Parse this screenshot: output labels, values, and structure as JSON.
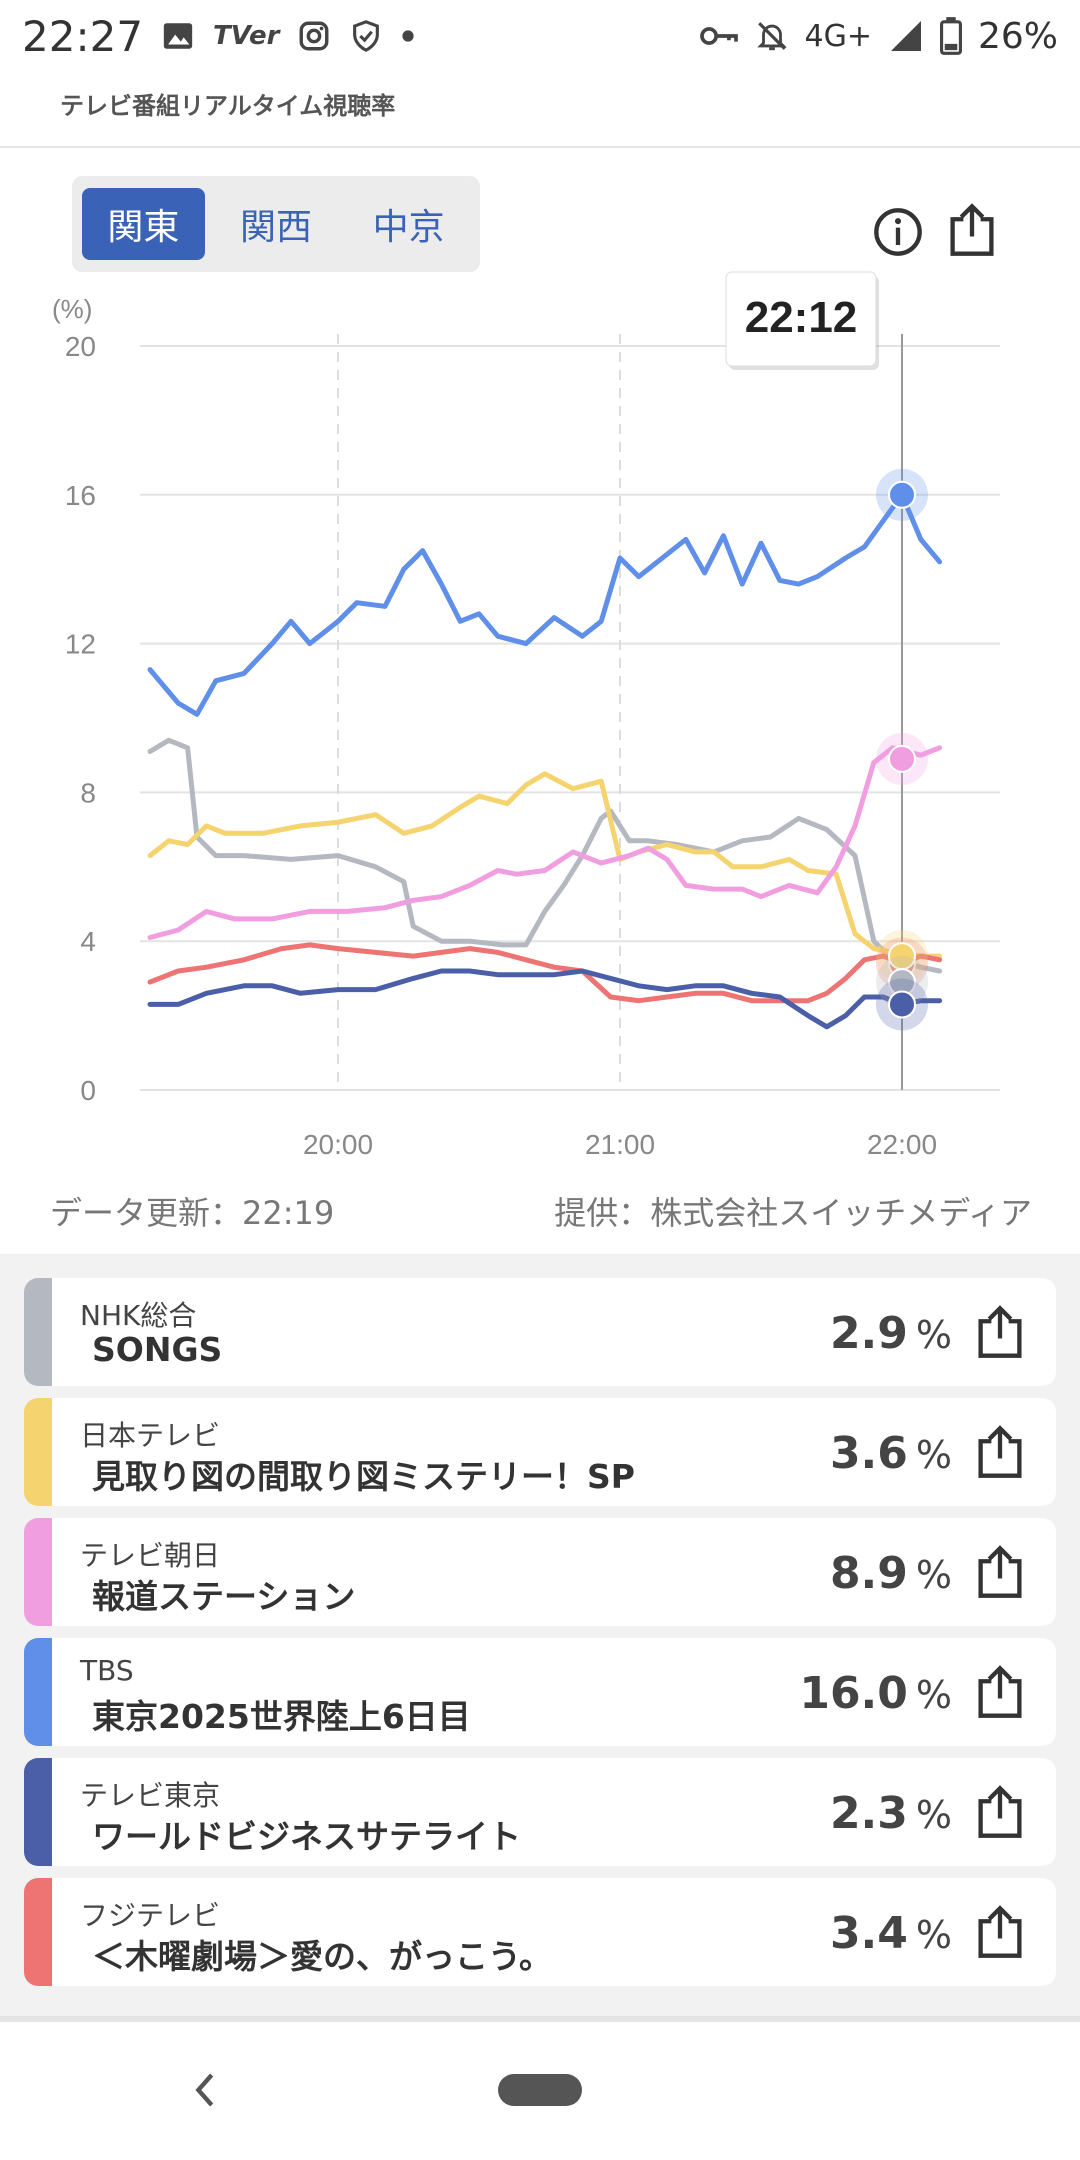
{
  "status_bar": {
    "time": "22:27",
    "tver_label": "TVer",
    "network": "4G+",
    "battery": "26%"
  },
  "header": {
    "subtitle": "テレビ番組リアルタイム視聴率"
  },
  "region_tabs": [
    {
      "label": "関東",
      "active": true
    },
    {
      "label": "関西",
      "active": false
    },
    {
      "label": "中京",
      "active": false
    }
  ],
  "chart": {
    "tooltip_time": "22:12",
    "update_text": "データ更新：22:19",
    "provider_text": "提供：株式会社スイッチメディア"
  },
  "chart_data": {
    "type": "line",
    "ylabel": "(%)",
    "ylim": [
      0,
      20
    ],
    "y_ticks": [
      "0",
      "4",
      "8",
      "12",
      "16",
      "20"
    ],
    "x_ticks": [
      "20:00",
      "21:00",
      "22:00"
    ],
    "x_range_minutes": [
      -40,
      80
    ],
    "series": [
      {
        "name": "NHK総合",
        "color": "#b4b8c0",
        "values": [
          [
            -40,
            9.1
          ],
          [
            -36,
            9.4
          ],
          [
            -32,
            9.2
          ],
          [
            -30,
            6.8
          ],
          [
            -26,
            6.3
          ],
          [
            -20,
            6.3
          ],
          [
            -10,
            6.2
          ],
          [
            0,
            6.3
          ],
          [
            8,
            6.0
          ],
          [
            14,
            5.6
          ],
          [
            16,
            4.4
          ],
          [
            22,
            4.0
          ],
          [
            28,
            4.0
          ],
          [
            35,
            3.9
          ],
          [
            40,
            3.9
          ],
          [
            44,
            4.8
          ],
          [
            48,
            5.5
          ],
          [
            52,
            6.3
          ],
          [
            56,
            7.3
          ],
          [
            58,
            7.5
          ],
          [
            62,
            6.7
          ],
          [
            66,
            6.7
          ],
          [
            72,
            6.6
          ],
          [
            80,
            6.4
          ],
          [
            86,
            6.7
          ],
          [
            92,
            6.8
          ],
          [
            98,
            7.3
          ],
          [
            104,
            7.0
          ],
          [
            110,
            6.3
          ],
          [
            114,
            4.0
          ],
          [
            118,
            3.5
          ],
          [
            124,
            3.3
          ],
          [
            128,
            3.2
          ]
        ]
      },
      {
        "name": "日本テレビ",
        "color": "#f5d36e",
        "values": [
          [
            -40,
            6.3
          ],
          [
            -36,
            6.7
          ],
          [
            -32,
            6.6
          ],
          [
            -28,
            7.1
          ],
          [
            -24,
            6.9
          ],
          [
            -16,
            6.9
          ],
          [
            -8,
            7.1
          ],
          [
            0,
            7.2
          ],
          [
            8,
            7.4
          ],
          [
            14,
            6.9
          ],
          [
            20,
            7.1
          ],
          [
            26,
            7.6
          ],
          [
            30,
            7.9
          ],
          [
            36,
            7.7
          ],
          [
            40,
            8.2
          ],
          [
            44,
            8.5
          ],
          [
            50,
            8.1
          ],
          [
            56,
            8.3
          ],
          [
            60,
            6.2
          ],
          [
            64,
            6.4
          ],
          [
            70,
            6.6
          ],
          [
            76,
            6.4
          ],
          [
            80,
            6.4
          ],
          [
            84,
            6.0
          ],
          [
            90,
            6.0
          ],
          [
            96,
            6.2
          ],
          [
            100,
            5.9
          ],
          [
            106,
            5.8
          ],
          [
            110,
            4.2
          ],
          [
            114,
            3.8
          ],
          [
            118,
            3.7
          ],
          [
            124,
            3.6
          ],
          [
            128,
            3.6
          ]
        ]
      },
      {
        "name": "テレビ朝日",
        "color": "#f09ee0",
        "values": [
          [
            -40,
            4.1
          ],
          [
            -34,
            4.3
          ],
          [
            -28,
            4.8
          ],
          [
            -22,
            4.6
          ],
          [
            -14,
            4.6
          ],
          [
            -6,
            4.8
          ],
          [
            2,
            4.8
          ],
          [
            10,
            4.9
          ],
          [
            16,
            5.1
          ],
          [
            22,
            5.2
          ],
          [
            28,
            5.5
          ],
          [
            34,
            5.9
          ],
          [
            38,
            5.8
          ],
          [
            44,
            5.9
          ],
          [
            50,
            6.4
          ],
          [
            56,
            6.1
          ],
          [
            62,
            6.3
          ],
          [
            66,
            6.5
          ],
          [
            70,
            6.2
          ],
          [
            74,
            5.5
          ],
          [
            80,
            5.4
          ],
          [
            86,
            5.4
          ],
          [
            90,
            5.2
          ],
          [
            96,
            5.5
          ],
          [
            102,
            5.3
          ],
          [
            106,
            6.0
          ],
          [
            110,
            7.1
          ],
          [
            114,
            8.8
          ],
          [
            118,
            9.2
          ],
          [
            124,
            9.0
          ],
          [
            128,
            9.2
          ]
        ]
      },
      {
        "name": "TBS",
        "color": "#5f8fe8",
        "values": [
          [
            -40,
            11.3
          ],
          [
            -34,
            10.4
          ],
          [
            -30,
            10.1
          ],
          [
            -26,
            11.0
          ],
          [
            -20,
            11.2
          ],
          [
            -14,
            12.0
          ],
          [
            -10,
            12.6
          ],
          [
            -6,
            12.0
          ],
          [
            0,
            12.6
          ],
          [
            4,
            13.1
          ],
          [
            10,
            13.0
          ],
          [
            14,
            14.0
          ],
          [
            18,
            14.5
          ],
          [
            22,
            13.6
          ],
          [
            26,
            12.6
          ],
          [
            30,
            12.8
          ],
          [
            34,
            12.2
          ],
          [
            40,
            12.0
          ],
          [
            46,
            12.7
          ],
          [
            52,
            12.2
          ],
          [
            56,
            12.6
          ],
          [
            60,
            14.3
          ],
          [
            64,
            13.8
          ],
          [
            70,
            14.4
          ],
          [
            74,
            14.8
          ],
          [
            78,
            13.9
          ],
          [
            82,
            14.9
          ],
          [
            86,
            13.6
          ],
          [
            90,
            14.7
          ],
          [
            94,
            13.7
          ],
          [
            98,
            13.6
          ],
          [
            102,
            13.8
          ],
          [
            108,
            14.3
          ],
          [
            112,
            14.6
          ],
          [
            116,
            15.3
          ],
          [
            120,
            16.0
          ],
          [
            124,
            14.8
          ],
          [
            128,
            14.2
          ]
        ]
      },
      {
        "name": "テレビ東京",
        "color": "#4a5fa8",
        "values": [
          [
            -40,
            2.3
          ],
          [
            -34,
            2.3
          ],
          [
            -28,
            2.6
          ],
          [
            -20,
            2.8
          ],
          [
            -14,
            2.8
          ],
          [
            -8,
            2.6
          ],
          [
            0,
            2.7
          ],
          [
            8,
            2.7
          ],
          [
            16,
            3.0
          ],
          [
            22,
            3.2
          ],
          [
            28,
            3.2
          ],
          [
            34,
            3.1
          ],
          [
            40,
            3.1
          ],
          [
            46,
            3.1
          ],
          [
            52,
            3.2
          ],
          [
            58,
            3.0
          ],
          [
            64,
            2.8
          ],
          [
            70,
            2.7
          ],
          [
            76,
            2.8
          ],
          [
            82,
            2.8
          ],
          [
            88,
            2.6
          ],
          [
            94,
            2.5
          ],
          [
            100,
            2.0
          ],
          [
            104,
            1.7
          ],
          [
            108,
            2.0
          ],
          [
            112,
            2.5
          ],
          [
            116,
            2.5
          ],
          [
            120,
            2.3
          ],
          [
            124,
            2.4
          ],
          [
            128,
            2.4
          ]
        ]
      },
      {
        "name": "フジテレビ",
        "color": "#ee7373",
        "values": [
          [
            -40,
            2.9
          ],
          [
            -34,
            3.2
          ],
          [
            -28,
            3.3
          ],
          [
            -20,
            3.5
          ],
          [
            -12,
            3.8
          ],
          [
            -6,
            3.9
          ],
          [
            0,
            3.8
          ],
          [
            8,
            3.7
          ],
          [
            16,
            3.6
          ],
          [
            22,
            3.7
          ],
          [
            28,
            3.8
          ],
          [
            34,
            3.7
          ],
          [
            40,
            3.5
          ],
          [
            46,
            3.3
          ],
          [
            52,
            3.2
          ],
          [
            58,
            2.5
          ],
          [
            64,
            2.4
          ],
          [
            70,
            2.5
          ],
          [
            76,
            2.6
          ],
          [
            82,
            2.6
          ],
          [
            88,
            2.4
          ],
          [
            94,
            2.4
          ],
          [
            100,
            2.4
          ],
          [
            104,
            2.6
          ],
          [
            108,
            3.0
          ],
          [
            112,
            3.5
          ],
          [
            116,
            3.6
          ],
          [
            120,
            3.4
          ],
          [
            124,
            3.6
          ],
          [
            128,
            3.5
          ]
        ]
      }
    ],
    "cursor_minute": 120,
    "cursor_values": [
      {
        "series": "TBS",
        "value": 16.0
      },
      {
        "series": "テレビ朝日",
        "value": 8.9
      },
      {
        "series": "フジテレビ",
        "value": 3.4
      },
      {
        "series": "日本テレビ",
        "value": 3.6
      },
      {
        "series": "NHK総合",
        "value": 2.9
      },
      {
        "series": "テレビ東京",
        "value": 2.3
      }
    ],
    "grid": true
  },
  "channels": [
    {
      "station": "NHK総合",
      "program": "SONGS",
      "rating": "2.9",
      "unit": "%",
      "color": "#b4b8c0"
    },
    {
      "station": "日本テレビ",
      "program": "見取り図の間取り図ミステリー！SP",
      "rating": "3.6",
      "unit": "%",
      "color": "#f5d36e"
    },
    {
      "station": "テレビ朝日",
      "program": "報道ステーション",
      "rating": "8.9",
      "unit": "%",
      "color": "#f09ee0"
    },
    {
      "station": "TBS",
      "program": "東京2025世界陸上6日目",
      "rating": "16.0",
      "unit": "%",
      "color": "#5f8fe8"
    },
    {
      "station": "テレビ東京",
      "program": "ワールドビジネスサテライト",
      "rating": "2.3",
      "unit": "%",
      "color": "#4a5fa8"
    },
    {
      "station": "フジテレビ",
      "program": "＜木曜劇場＞愛の、がっこう。",
      "rating": "3.4",
      "unit": "%",
      "color": "#ee7373"
    }
  ],
  "navbar": {
    "back_icon": "chevron-left-icon",
    "home_icon": "home-pill-icon"
  }
}
